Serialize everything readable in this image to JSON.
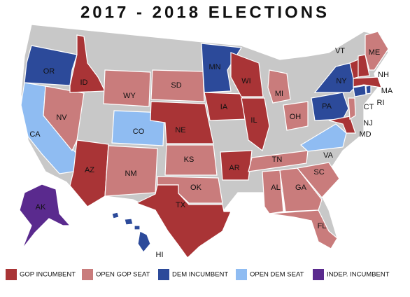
{
  "title": "2017 - 2018 ELECTIONS",
  "legend": [
    {
      "label": "GOP INCUMBENT",
      "color": "#a93436",
      "states": [
        "ID",
        "AZ",
        "TX",
        "NE",
        "IA",
        "WI",
        "IL",
        "AR",
        "MD",
        "VT",
        "NH",
        "MA"
      ]
    },
    {
      "label": "OPEN GOP SEAT",
      "color": "#c97c7c",
      "states": [
        "NV",
        "WY",
        "SD",
        "KS",
        "OK",
        "NM",
        "MI",
        "OH",
        "TN",
        "AL",
        "GA",
        "SC",
        "FL",
        "ME",
        "NJ"
      ]
    },
    {
      "label": "DEM INCUMBENT",
      "color": "#2c4a9a",
      "states": [
        "OR",
        "MN",
        "NY",
        "PA",
        "CT",
        "RI",
        "HI"
      ]
    },
    {
      "label": "OPEN DEM SEAT",
      "color": "#8fbcf2",
      "states": [
        "CA",
        "CO",
        "VA"
      ]
    },
    {
      "label": "INDEP. INCUMBENT",
      "color": "#5a2a8e",
      "states": [
        "AK"
      ]
    }
  ]
}
